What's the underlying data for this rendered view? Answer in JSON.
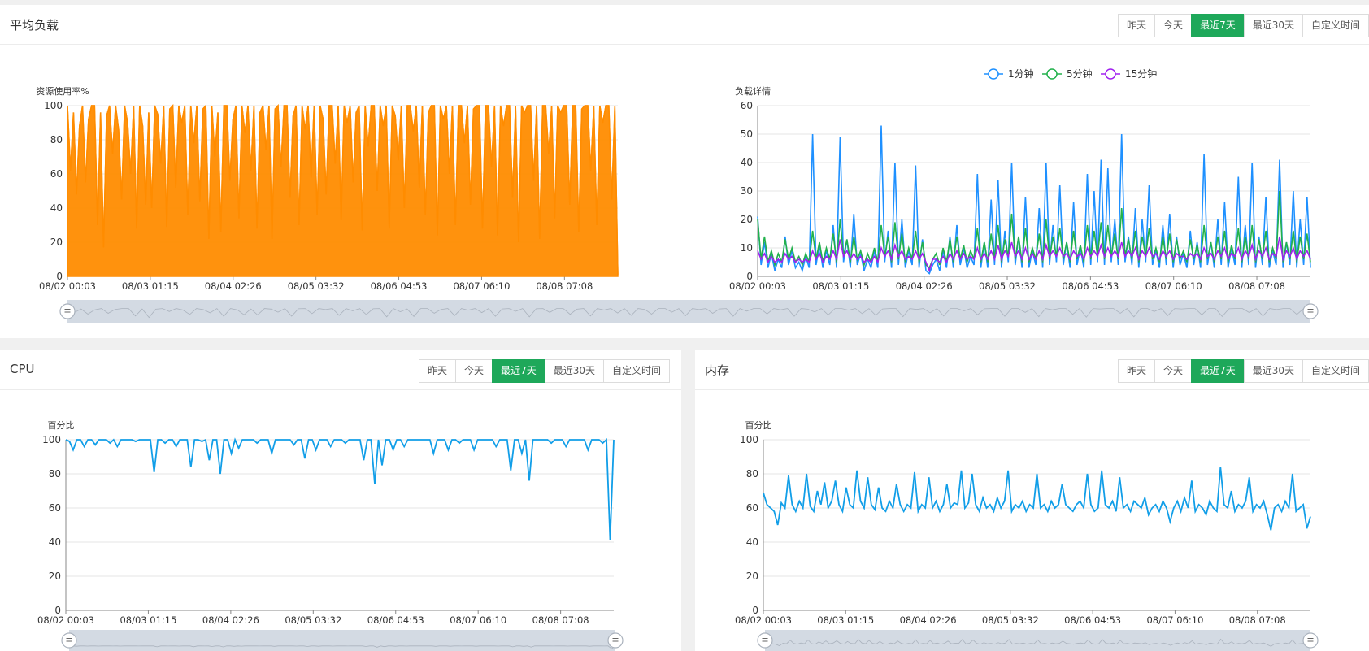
{
  "load_panel": {
    "title": "平均负载",
    "tabs": [
      "昨天",
      "今天",
      "最近7天",
      "最近30天",
      "自定义时间"
    ],
    "active_tab": 2
  },
  "cpu_panel": {
    "title": "CPU",
    "tabs": [
      "昨天",
      "今天",
      "最近7天",
      "最近30天",
      "自定义时间"
    ],
    "active_tab": 2
  },
  "mem_panel": {
    "title": "内存",
    "tabs": [
      "昨天",
      "今天",
      "最近7天",
      "最近30天",
      "自定义时间"
    ],
    "active_tab": 2
  },
  "colors": {
    "orange": "#ff8c00",
    "blue": "#1e90ff",
    "green": "#22b14c",
    "purple": "#a020f0",
    "cpu_blue": "#119ee8",
    "active_tab": "#1ea85a",
    "slider": "#d3dae3"
  },
  "chart_data": [
    {
      "id": "load_usage",
      "type": "area",
      "ylabel": "资源使用率%",
      "ylim": [
        0,
        100
      ],
      "yticks": [
        0,
        20,
        40,
        60,
        80,
        100
      ],
      "xticks": [
        "08/02 00:03",
        "08/03 01:15",
        "08/04 02:26",
        "08/05 03:32",
        "08/06 04:53",
        "08/07 06:10",
        "08/08 07:08"
      ],
      "grid": true,
      "series": [
        {
          "values": [
            100,
            62,
            96,
            48,
            88,
            100,
            55,
            92,
            100,
            100,
            30,
            96,
            17,
            94,
            100,
            72,
            100,
            86,
            45,
            100,
            90,
            60,
            100,
            28,
            100,
            88,
            42,
            96,
            40,
            100,
            95,
            66,
            100,
            29,
            98,
            100,
            52,
            100,
            90,
            100,
            36,
            100,
            78,
            100,
            44,
            98,
            100,
            22,
            100,
            70,
            96,
            26,
            100,
            100,
            56,
            92,
            100,
            34,
            100,
            84,
            100,
            62,
            100,
            28,
            96,
            100,
            74,
            100,
            22,
            98,
            100,
            64,
            100,
            100,
            46,
            94,
            100,
            30,
            100,
            86,
            100,
            58,
            100,
            36,
            100,
            92,
            48,
            100,
            100,
            66,
            100,
            33,
            100,
            90,
            100,
            55,
            96,
            100,
            27,
            100,
            76,
            100,
            100,
            50,
            100,
            88,
            100,
            28,
            100,
            94,
            68,
            100,
            40,
            100,
            100,
            85,
            100,
            52,
            100,
            36,
            96,
            100,
            100,
            24,
            100,
            92,
            100,
            60,
            100,
            30,
            100,
            100,
            78,
            100,
            42,
            98,
            100,
            100,
            28,
            100,
            100,
            64,
            100,
            24,
            100,
            88,
            100,
            100,
            46,
            100,
            20,
            100,
            96,
            100,
            100,
            56,
            100,
            22,
            100,
            100,
            72,
            100,
            34,
            100,
            96,
            100,
            100,
            42,
            100,
            100,
            26,
            98,
            100,
            100,
            62,
            100,
            30,
            100,
            90,
            100,
            100,
            45,
            100,
            1
          ]
        }
      ]
    },
    {
      "id": "load_detail",
      "type": "line",
      "ylabel": "负载详情",
      "ylim": [
        0,
        60
      ],
      "yticks": [
        0,
        10,
        20,
        30,
        40,
        50,
        60
      ],
      "xticks": [
        "08/02 00:03",
        "08/03 01:15",
        "08/04 02:26",
        "08/05 03:32",
        "08/06 04:53",
        "08/07 06:10",
        "08/08 07:08"
      ],
      "grid": true,
      "legend": "top-center",
      "series": [
        {
          "name": "1分钟",
          "values": [
            21,
            4,
            12,
            3,
            8,
            2,
            6,
            3,
            14,
            4,
            9,
            3,
            5,
            2,
            7,
            3,
            50,
            4,
            11,
            3,
            9,
            4,
            18,
            3,
            49,
            5,
            13,
            3,
            22,
            4,
            8,
            2,
            6,
            3,
            9,
            3,
            53,
            5,
            16,
            3,
            40,
            4,
            20,
            3,
            9,
            4,
            39,
            3,
            13,
            2,
            1,
            4,
            6,
            2,
            9,
            3,
            14,
            3,
            18,
            4,
            10,
            3,
            7,
            4,
            36,
            3,
            12,
            3,
            27,
            4,
            34,
            3,
            16,
            5,
            40,
            4,
            14,
            3,
            28,
            3,
            9,
            4,
            24,
            3,
            40,
            4,
            18,
            5,
            32,
            4,
            12,
            3,
            26,
            4,
            10,
            3,
            36,
            4,
            30,
            5,
            41,
            4,
            38,
            5,
            20,
            4,
            50,
            5,
            14,
            4,
            24,
            3,
            20,
            5,
            32,
            4,
            9,
            3,
            18,
            4,
            22,
            3,
            14,
            4,
            8,
            3,
            16,
            4,
            12,
            3,
            43,
            4,
            12,
            3,
            20,
            4,
            26,
            3,
            10,
            4,
            35,
            3,
            18,
            4,
            40,
            3,
            14,
            4,
            28,
            3,
            9,
            4,
            41,
            3,
            12,
            4,
            30,
            3,
            20,
            4,
            28,
            3
          ]
        },
        {
          "name": "5分钟",
          "values": [
            20,
            6,
            14,
            5,
            9,
            4,
            8,
            5,
            13,
            6,
            10,
            5,
            7,
            4,
            8,
            5,
            16,
            6,
            12,
            5,
            10,
            6,
            15,
            5,
            20,
            7,
            13,
            5,
            14,
            6,
            9,
            4,
            8,
            5,
            10,
            5,
            18,
            7,
            14,
            5,
            19,
            6,
            15,
            5,
            10,
            6,
            16,
            5,
            12,
            4,
            3,
            6,
            8,
            4,
            10,
            5,
            13,
            5,
            14,
            6,
            11,
            5,
            9,
            6,
            17,
            5,
            12,
            5,
            15,
            6,
            18,
            5,
            13,
            7,
            22,
            6,
            14,
            5,
            17,
            5,
            10,
            6,
            15,
            5,
            20,
            6,
            14,
            7,
            17,
            6,
            12,
            5,
            16,
            6,
            11,
            5,
            18,
            6,
            16,
            7,
            19,
            6,
            18,
            7,
            15,
            6,
            24,
            7,
            13,
            6,
            16,
            5,
            14,
            7,
            17,
            6,
            10,
            5,
            14,
            6,
            15,
            5,
            13,
            6,
            9,
            5,
            13,
            6,
            11,
            5,
            18,
            6,
            12,
            5,
            14,
            6,
            16,
            5,
            11,
            6,
            17,
            5,
            14,
            6,
            18,
            5,
            13,
            6,
            16,
            5,
            10,
            6,
            30,
            5,
            12,
            6,
            16,
            5,
            14,
            6,
            15,
            5
          ]
        },
        {
          "name": "15分钟",
          "values": [
            9,
            6,
            8,
            5,
            7,
            5,
            6,
            5,
            8,
            6,
            7,
            5,
            6,
            5,
            6,
            5,
            9,
            6,
            8,
            5,
            7,
            6,
            9,
            6,
            13,
            7,
            9,
            6,
            8,
            6,
            7,
            5,
            6,
            5,
            7,
            5,
            10,
            7,
            9,
            6,
            11,
            7,
            9,
            6,
            7,
            6,
            9,
            6,
            8,
            5,
            2,
            6,
            6,
            5,
            7,
            5,
            8,
            6,
            9,
            6,
            8,
            6,
            7,
            6,
            10,
            6,
            8,
            6,
            9,
            6,
            11,
            6,
            9,
            7,
            12,
            7,
            9,
            6,
            10,
            6,
            8,
            6,
            9,
            6,
            11,
            7,
            9,
            7,
            10,
            7,
            8,
            6,
            9,
            7,
            8,
            6,
            10,
            7,
            9,
            7,
            11,
            7,
            10,
            7,
            9,
            7,
            12,
            7,
            9,
            7,
            10,
            6,
            9,
            7,
            10,
            7,
            8,
            6,
            9,
            7,
            9,
            6,
            8,
            7,
            7,
            6,
            8,
            7,
            8,
            6,
            10,
            7,
            8,
            6,
            9,
            7,
            10,
            6,
            8,
            7,
            10,
            6,
            9,
            7,
            11,
            6,
            9,
            7,
            10,
            6,
            8,
            7,
            14,
            6,
            9,
            7,
            10,
            6,
            9,
            7,
            9,
            6
          ]
        }
      ]
    },
    {
      "id": "cpu",
      "type": "line",
      "ylabel": "百分比",
      "ylim": [
        0,
        100
      ],
      "yticks": [
        0,
        20,
        40,
        60,
        80,
        100
      ],
      "xticks": [
        "08/02 00:03",
        "08/03 01:15",
        "08/04 02:26",
        "08/05 03:32",
        "08/06 04:53",
        "08/07 06:10",
        "08/08 07:08"
      ],
      "grid": true,
      "series": [
        {
          "values": [
            100,
            99,
            94,
            100,
            100,
            96,
            100,
            100,
            97,
            100,
            100,
            100,
            98,
            100,
            96,
            100,
            100,
            100,
            100,
            99,
            100,
            100,
            100,
            100,
            81,
            100,
            100,
            98,
            100,
            100,
            96,
            100,
            100,
            100,
            84,
            100,
            100,
            99,
            100,
            88,
            100,
            100,
            80,
            100,
            100,
            92,
            100,
            95,
            100,
            100,
            100,
            100,
            98,
            100,
            100,
            100,
            92,
            100,
            100,
            100,
            100,
            100,
            97,
            100,
            100,
            89,
            100,
            100,
            94,
            100,
            100,
            100,
            96,
            100,
            100,
            100,
            98,
            100,
            100,
            100,
            100,
            88,
            100,
            100,
            74,
            100,
            85,
            100,
            100,
            94,
            100,
            100,
            96,
            100,
            100,
            100,
            100,
            100,
            100,
            100,
            92,
            100,
            100,
            100,
            94,
            100,
            100,
            98,
            100,
            100,
            100,
            94,
            100,
            100,
            100,
            100,
            100,
            96,
            100,
            100,
            100,
            82,
            100,
            100,
            92,
            100,
            76,
            100,
            100,
            100,
            100,
            100,
            98,
            100,
            100,
            100,
            96,
            100,
            100,
            100,
            100,
            100,
            94,
            100,
            100,
            100,
            98,
            100,
            41,
            100
          ]
        }
      ]
    },
    {
      "id": "memory",
      "type": "line",
      "ylabel": "百分比",
      "ylim": [
        0,
        100
      ],
      "yticks": [
        0,
        20,
        40,
        60,
        80,
        100
      ],
      "xticks": [
        "08/02 00:03",
        "08/03 01:15",
        "08/04 02:26",
        "08/05 03:32",
        "08/06 04:53",
        "08/07 06:10",
        "08/08 07:08"
      ],
      "grid": true,
      "series": [
        {
          "values": [
            69,
            62,
            60,
            58,
            50,
            63,
            60,
            79,
            62,
            58,
            64,
            60,
            80,
            61,
            58,
            70,
            62,
            75,
            60,
            64,
            76,
            62,
            58,
            72,
            62,
            60,
            82,
            64,
            60,
            78,
            62,
            59,
            72,
            60,
            58,
            64,
            60,
            74,
            62,
            58,
            62,
            60,
            81,
            58,
            62,
            60,
            78,
            60,
            64,
            58,
            62,
            74,
            60,
            63,
            62,
            82,
            60,
            63,
            80,
            62,
            58,
            66,
            60,
            62,
            58,
            66,
            60,
            64,
            82,
            58,
            62,
            60,
            64,
            58,
            62,
            60,
            80,
            60,
            62,
            58,
            64,
            60,
            62,
            74,
            62,
            60,
            58,
            62,
            64,
            60,
            80,
            62,
            58,
            60,
            82,
            62,
            60,
            64,
            58,
            78,
            60,
            62,
            58,
            64,
            62,
            60,
            66,
            56,
            60,
            62,
            58,
            64,
            60,
            52,
            60,
            64,
            58,
            66,
            60,
            76,
            58,
            62,
            60,
            56,
            64,
            60,
            58,
            84,
            62,
            60,
            70,
            58,
            62,
            60,
            64,
            78,
            58,
            62,
            60,
            64,
            56,
            47,
            60,
            62,
            58,
            64,
            60,
            80,
            58,
            60,
            62,
            48,
            55
          ]
        }
      ]
    }
  ]
}
